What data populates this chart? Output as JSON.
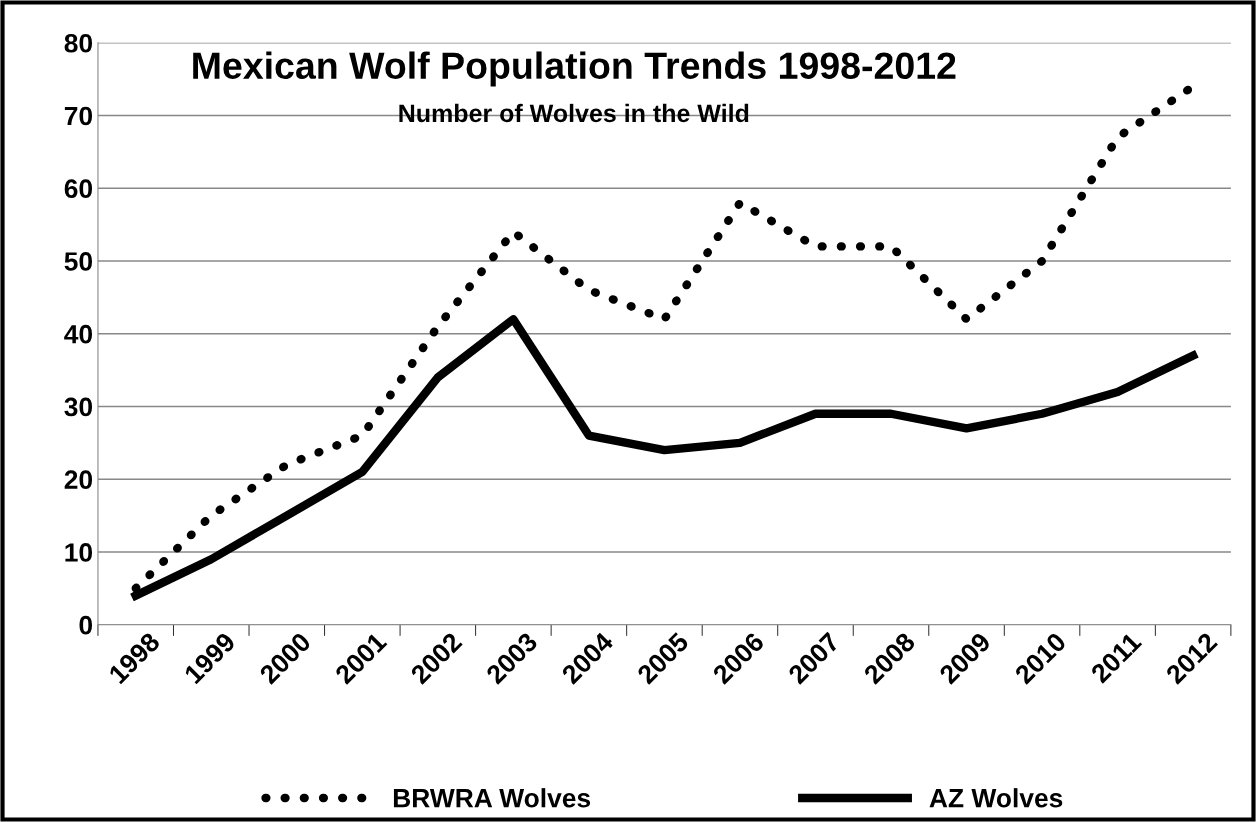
{
  "chart_data": {
    "type": "line",
    "title": "Mexican Wolf Population Trends 1998-2012",
    "subtitle": "Number of Wolves in the Wild",
    "categories": [
      "1998",
      "1999",
      "2000",
      "2001",
      "2002",
      "2003",
      "2004",
      "2005",
      "2006",
      "2007",
      "2008",
      "2009",
      "2010",
      "2011",
      "2012"
    ],
    "series": [
      {
        "name": "BRWRA Wolves",
        "color": "#000000",
        "line_style": "dotted",
        "values": [
          5,
          15,
          22,
          26,
          41,
          54,
          46,
          42,
          58,
          52,
          52,
          42,
          50,
          67,
          74
        ]
      },
      {
        "name": "AZ Wolves",
        "color": "#000000",
        "line_style": "solid",
        "values": [
          4,
          9,
          15,
          21,
          34,
          42,
          26,
          24,
          25,
          29,
          29,
          27,
          29,
          32,
          37
        ]
      }
    ],
    "ylim": [
      0,
      80
    ],
    "yticks": [
      0,
      10,
      20,
      30,
      40,
      50,
      60,
      70,
      80
    ],
    "grid": "y",
    "legend": "bottom",
    "marker": "none"
  }
}
